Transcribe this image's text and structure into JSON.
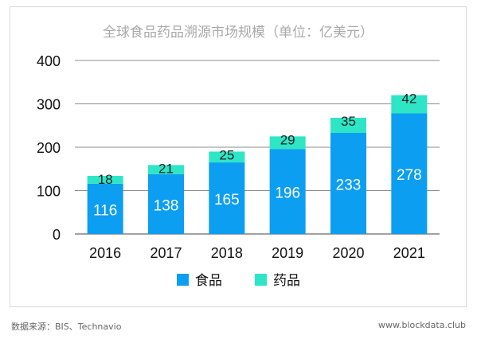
{
  "chart_data": {
    "type": "bar",
    "stacked": true,
    "title": "全球食品药品溯源市场规模（单位：亿美元）",
    "categories": [
      "2016",
      "2017",
      "2018",
      "2019",
      "2020",
      "2021"
    ],
    "series": [
      {
        "name": "食品",
        "values": [
          116,
          138,
          165,
          196,
          233,
          278
        ],
        "color": "#0c9ef0"
      },
      {
        "name": "药品",
        "values": [
          18,
          21,
          25,
          29,
          35,
          42
        ],
        "color": "#2ee6c6"
      }
    ],
    "ylim": [
      0,
      400
    ],
    "yticks": [
      0,
      100,
      200,
      300,
      400
    ],
    "xlabel": "",
    "ylabel": "",
    "grid": true,
    "legend": "bottom"
  },
  "footer": {
    "source": "数据来源：BIS、Technavio",
    "site": "www.blockdata.club"
  }
}
